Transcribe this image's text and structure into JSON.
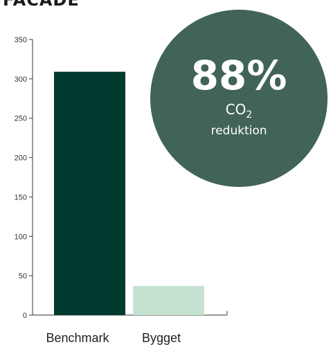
{
  "header": {
    "title": "FACADE"
  },
  "chart_data": {
    "type": "bar",
    "categories": [
      "Benchmark",
      "Bygget"
    ],
    "values": [
      309,
      37
    ],
    "colors": [
      "#003a2e",
      "#c6e3d1"
    ],
    "ylim": [
      0,
      350
    ],
    "yticks": [
      0,
      50,
      100,
      150,
      200,
      250,
      300,
      350
    ],
    "title": "",
    "xlabel": "",
    "ylabel": "",
    "grid": false
  },
  "badge": {
    "percent": "88%",
    "gas": "CO",
    "gas_sub": "2",
    "label": "reduktion",
    "color": "#416359"
  }
}
